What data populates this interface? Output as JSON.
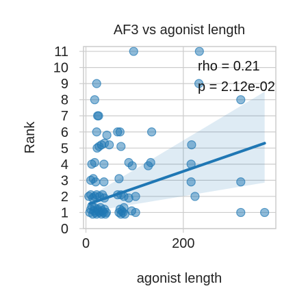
{
  "chart_data": {
    "type": "scatter",
    "title": "AF3 vs agonist length",
    "xlabel": "agonist length",
    "ylabel": "Rank",
    "xlim": [
      -5,
      390
    ],
    "ylim": [
      0,
      11.3
    ],
    "x_ticks": [
      0,
      200
    ],
    "y_ticks": [
      0,
      1,
      2,
      3,
      4,
      5,
      6,
      7,
      8,
      9,
      10,
      11
    ],
    "grid": true,
    "colors": {
      "points": "#1f77b4",
      "line": "#1f77b4",
      "band": "#1f77b4"
    },
    "annotations": [
      "rho = 0.21",
      "p = 2.12e-02"
    ],
    "regression": {
      "x": [
        8,
        367
      ],
      "y": [
        1.55,
        5.3
      ],
      "ci_lower": [
        1.05,
        2.85
      ],
      "ci_upper": [
        2.0,
        8.5
      ]
    },
    "points": [
      {
        "x": 98,
        "y": 11
      },
      {
        "x": 233,
        "y": 11
      },
      {
        "x": 232,
        "y": 9
      },
      {
        "x": 22,
        "y": 9
      },
      {
        "x": 18,
        "y": 8
      },
      {
        "x": 318,
        "y": 8
      },
      {
        "x": 24,
        "y": 7
      },
      {
        "x": 26,
        "y": 7
      },
      {
        "x": 22,
        "y": 6
      },
      {
        "x": 65,
        "y": 6
      },
      {
        "x": 70,
        "y": 6
      },
      {
        "x": 135,
        "y": 6
      },
      {
        "x": 43,
        "y": 5.8
      },
      {
        "x": 23,
        "y": 5
      },
      {
        "x": 27,
        "y": 5.1
      },
      {
        "x": 32,
        "y": 5.2
      },
      {
        "x": 38,
        "y": 5.3
      },
      {
        "x": 48,
        "y": 5.2
      },
      {
        "x": 72,
        "y": 5.1
      },
      {
        "x": 217,
        "y": 5.2
      },
      {
        "x": 12,
        "y": 4
      },
      {
        "x": 18,
        "y": 4.1
      },
      {
        "x": 37,
        "y": 4
      },
      {
        "x": 88,
        "y": 4.1
      },
      {
        "x": 95,
        "y": 3.9
      },
      {
        "x": 128,
        "y": 3.9
      },
      {
        "x": 133,
        "y": 4.1
      },
      {
        "x": 216,
        "y": 4
      },
      {
        "x": 10,
        "y": 3
      },
      {
        "x": 15,
        "y": 3.1
      },
      {
        "x": 20,
        "y": 2.9
      },
      {
        "x": 37,
        "y": 2.9
      },
      {
        "x": 68,
        "y": 3.1
      },
      {
        "x": 216,
        "y": 2.9
      },
      {
        "x": 318,
        "y": 2.9
      },
      {
        "x": 6,
        "y": 2
      },
      {
        "x": 10,
        "y": 2.1
      },
      {
        "x": 14,
        "y": 1.9
      },
      {
        "x": 18,
        "y": 2
      },
      {
        "x": 22,
        "y": 2.1
      },
      {
        "x": 28,
        "y": 2
      },
      {
        "x": 34,
        "y": 2.1
      },
      {
        "x": 38,
        "y": 1.9
      },
      {
        "x": 65,
        "y": 2.1
      },
      {
        "x": 72,
        "y": 2.1
      },
      {
        "x": 78,
        "y": 2
      },
      {
        "x": 88,
        "y": 1.9
      },
      {
        "x": 102,
        "y": 2
      },
      {
        "x": 224,
        "y": 2
      },
      {
        "x": 8,
        "y": 1
      },
      {
        "x": 10,
        "y": 1.2
      },
      {
        "x": 12,
        "y": 1.4
      },
      {
        "x": 14,
        "y": 0.9
      },
      {
        "x": 16,
        "y": 1.1
      },
      {
        "x": 18,
        "y": 1.3
      },
      {
        "x": 20,
        "y": 1
      },
      {
        "x": 22,
        "y": 0.9
      },
      {
        "x": 24,
        "y": 1.2
      },
      {
        "x": 26,
        "y": 1.1
      },
      {
        "x": 28,
        "y": 1
      },
      {
        "x": 30,
        "y": 1.3
      },
      {
        "x": 32,
        "y": 0.9
      },
      {
        "x": 34,
        "y": 1.1
      },
      {
        "x": 36,
        "y": 1
      },
      {
        "x": 38,
        "y": 1.2
      },
      {
        "x": 40,
        "y": 0.9
      },
      {
        "x": 42,
        "y": 1
      },
      {
        "x": 68,
        "y": 1
      },
      {
        "x": 70,
        "y": 1.2
      },
      {
        "x": 72,
        "y": 0.9
      },
      {
        "x": 74,
        "y": 1.1
      },
      {
        "x": 76,
        "y": 1
      },
      {
        "x": 78,
        "y": 1.3
      },
      {
        "x": 80,
        "y": 0.9
      },
      {
        "x": 94,
        "y": 1.1
      },
      {
        "x": 102,
        "y": 1
      },
      {
        "x": 318,
        "y": 1
      },
      {
        "x": 367,
        "y": 1
      }
    ]
  }
}
